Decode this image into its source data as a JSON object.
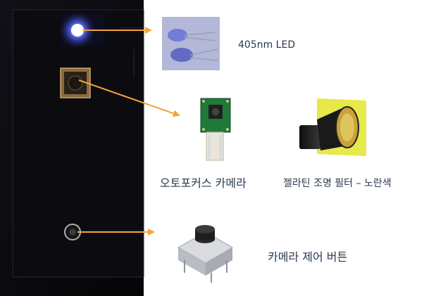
{
  "labels": {
    "led": "405nm LED",
    "camera": "오토포커스 카메라",
    "filter": "젤라틴 조명 필터 – 노란색",
    "button": "카메라 제어 버튼"
  },
  "colors": {
    "arrow": "#f5a43a",
    "board": "#0a0a0c",
    "led_glow": "#5a6cff",
    "pcb_green": "#1f7a3a",
    "filter_yellow": "#e7e84a",
    "text": "#2a3a52"
  }
}
